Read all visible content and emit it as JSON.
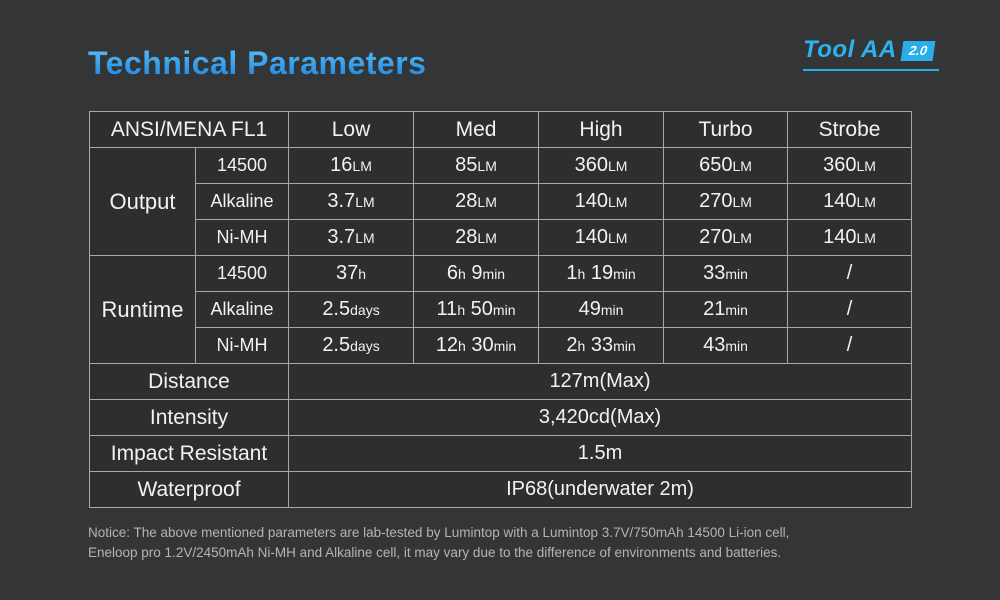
{
  "title": "Technical Parameters",
  "brand": {
    "name": "Tool AA",
    "version": "2.0",
    "accent_color": "#2aade8"
  },
  "colors": {
    "page_background": "#333537",
    "table_header_background": "#3b7094",
    "cell_background": "#2c2e2f",
    "grid_border": "#a8a8a8",
    "title_gradient_top": "#55bdf6",
    "title_gradient_bottom": "#1c83e0",
    "notice_text": "#b4b4b4"
  },
  "table": {
    "header": [
      "ANSI/MENA FL1",
      "Low",
      "Med",
      "High",
      "Turbo",
      "Strobe"
    ],
    "groups": [
      {
        "label": "Output",
        "rows": [
          {
            "battery": "14500",
            "values": [
              "16LM",
              "85LM",
              "360LM",
              "650LM",
              "360LM"
            ]
          },
          {
            "battery": "Alkaline",
            "values": [
              "3.7LM",
              "28LM",
              "140LM",
              "270LM",
              "140LM"
            ]
          },
          {
            "battery": "Ni-MH",
            "values": [
              "3.7LM",
              "28LM",
              "140LM",
              "270LM",
              "140LM"
            ]
          }
        ]
      },
      {
        "label": "Runtime",
        "rows": [
          {
            "battery": "14500",
            "values": [
              "37h",
              "6h 9min",
              "1h 19min",
              "33min",
              "/"
            ]
          },
          {
            "battery": "Alkaline",
            "values": [
              "2.5days",
              "11h 50min",
              "49min",
              "21min",
              "/"
            ]
          },
          {
            "battery": "Ni-MH",
            "values": [
              "2.5days",
              "12h 30min",
              "2h 33min",
              "43min",
              "/"
            ]
          }
        ]
      }
    ],
    "specs": [
      {
        "label": "Distance",
        "value": "127m(Max)"
      },
      {
        "label": "Intensity",
        "value": "3,420cd(Max)"
      },
      {
        "label": "Impact Resistant",
        "value": "1.5m"
      },
      {
        "label": "Waterproof",
        "value": "IP68(underwater 2m)"
      }
    ]
  },
  "notice": {
    "line1": "Notice: The above mentioned parameters are lab-tested by Lumintop with a Lumintop 3.7V/750mAh 14500 Li-ion cell,",
    "line2": "Eneloop pro 1.2V/2450mAh Ni-MH and Alkaline cell, it may vary due to the difference of environments and batteries."
  }
}
